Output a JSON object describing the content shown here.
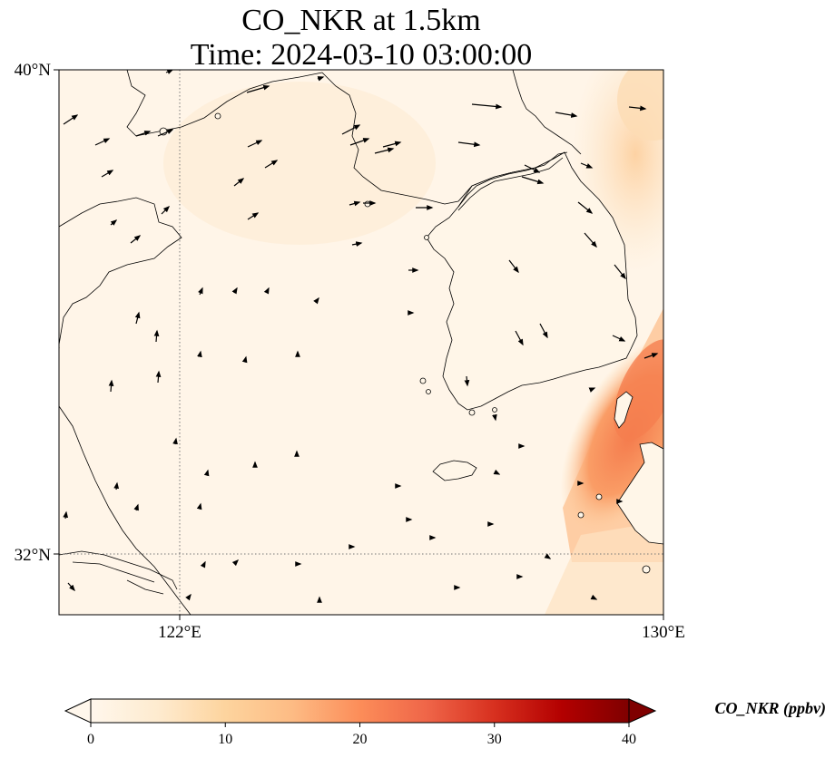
{
  "map": {
    "title_line1": "CO_NKR at 1.5km",
    "title_line2": "Time: 2024-03-10 03:00:00",
    "lon_ticks": [
      "122°E",
      "130°E"
    ],
    "lat_ticks": [
      "40°N",
      "32°N"
    ],
    "lon_range": [
      120,
      130
    ],
    "lat_range": [
      31,
      40
    ],
    "gridlines": true,
    "colormap": "OrRd",
    "colors": {
      "low": "#fff7ec",
      "mid": "#fc8d59",
      "high": "#7f0000"
    }
  },
  "colorbar": {
    "label": "CO_NKR (ppbv)",
    "min": 0,
    "max": 40,
    "extend": "both",
    "ticks": [
      "0",
      "10",
      "20",
      "30",
      "40"
    ]
  }
}
